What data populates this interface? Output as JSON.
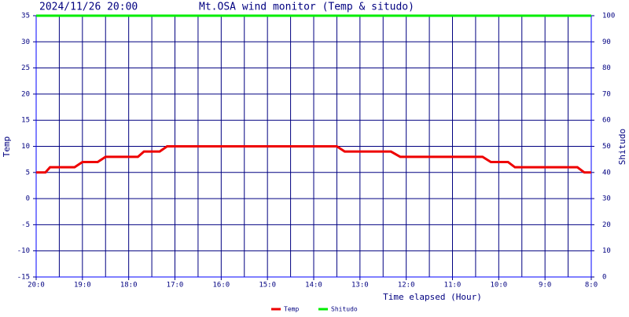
{
  "chart_data": {
    "type": "line",
    "timestamp": "2024/11/26 20:00",
    "title": "Mt.OSA wind monitor (Temp & situdo)",
    "x_label": "Time elapsed (Hour)",
    "y_label": "Temp",
    "y2_label": "Shitudo",
    "x": [
      0,
      0.2,
      0.3,
      0.83,
      1.0,
      1.33,
      1.5,
      2.2,
      2.33,
      2.67,
      2.83,
      6.5,
      6.67,
      7.67,
      7.87,
      9.65,
      9.83,
      10.2,
      10.35,
      11.7,
      11.85,
      12
    ],
    "series": [
      {
        "name": "Temp",
        "color": "#ee0000",
        "values": [
          5,
          5,
          6,
          6,
          7,
          7,
          8,
          8,
          9,
          9,
          10,
          10,
          9,
          9,
          8,
          8,
          7,
          7,
          6,
          6,
          5,
          5
        ]
      },
      {
        "name": "Shitudo",
        "color": "#00ee00",
        "axis": "y2",
        "values": [
          100,
          100,
          100,
          100,
          100,
          100,
          100,
          100,
          100,
          100,
          100,
          100,
          100,
          100,
          100,
          100,
          100,
          100,
          100,
          100,
          100,
          100
        ]
      }
    ],
    "xlim": [
      0,
      12
    ],
    "xticks": [
      {
        "value": 0,
        "label": "20:0"
      },
      {
        "value": 1,
        "label": "19:0"
      },
      {
        "value": 2,
        "label": "18:0"
      },
      {
        "value": 3,
        "label": "17:0"
      },
      {
        "value": 4,
        "label": "16:0"
      },
      {
        "value": 5,
        "label": "15:0"
      },
      {
        "value": 6,
        "label": "14:0"
      },
      {
        "value": 7,
        "label": "13:0"
      },
      {
        "value": 8,
        "label": "12:0"
      },
      {
        "value": 9,
        "label": "11:0"
      },
      {
        "value": 10,
        "label": "10:0"
      },
      {
        "value": 11,
        "label": "9:0"
      },
      {
        "value": 12,
        "label": "8:0"
      }
    ],
    "xgrid": [
      0,
      0.5,
      1,
      1.5,
      2,
      2.5,
      3,
      3.5,
      4,
      4.5,
      5,
      5.5,
      6,
      6.5,
      7,
      7.5,
      8,
      8.5,
      9,
      9.5,
      10,
      10.5,
      11,
      11.5,
      12
    ],
    "ylim": [
      -15,
      35
    ],
    "yticks": [
      -15,
      -10,
      -5,
      0,
      5,
      10,
      15,
      20,
      25,
      30,
      35
    ],
    "y2lim": [
      0,
      100
    ],
    "y2ticks": [
      0,
      10,
      20,
      30,
      40,
      50,
      60,
      70,
      80,
      90,
      100
    ],
    "grid": true,
    "grid_color": "#000080"
  }
}
